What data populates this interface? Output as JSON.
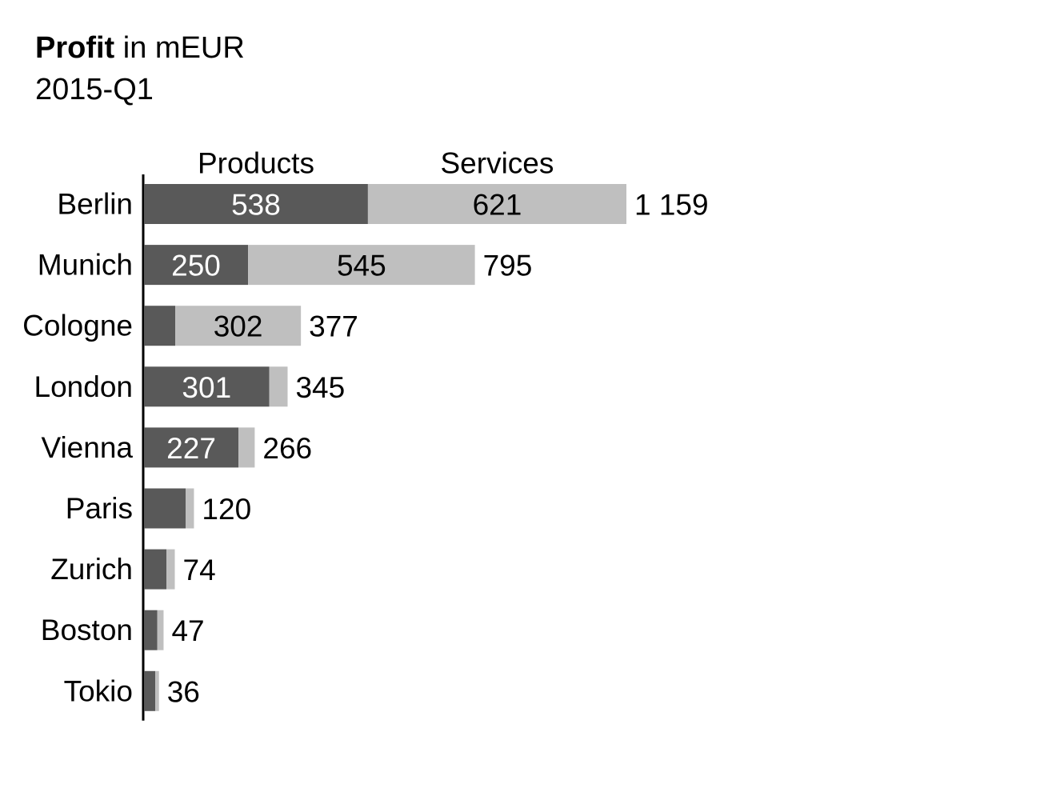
{
  "chart_data": {
    "type": "bar",
    "orientation": "horizontal",
    "stacked": true,
    "title_bold": "Profit",
    "title_rest": " in mEUR",
    "subtitle": "2015-Q1",
    "categories": [
      "Berlin",
      "Munich",
      "Cologne",
      "London",
      "Vienna",
      "Paris",
      "Zurich",
      "Boston",
      "Tokio"
    ],
    "series": [
      {
        "name": "Products",
        "color": "#595959",
        "label_color": "#ffffff",
        "values": [
          538,
          250,
          75,
          301,
          227,
          100,
          54,
          32,
          27
        ],
        "labels": [
          "538",
          "250",
          "",
          "301",
          "227",
          "",
          "",
          "",
          ""
        ]
      },
      {
        "name": "Services",
        "color": "#bfbfbf",
        "label_color": "#000000",
        "values": [
          621,
          545,
          302,
          44,
          39,
          20,
          20,
          15,
          9
        ],
        "labels": [
          "621",
          "545",
          "302",
          "",
          "",
          "",
          "",
          "",
          ""
        ]
      }
    ],
    "totals": [
      "1 159",
      "795",
      "377",
      "345",
      "266",
      "120",
      "74",
      "47",
      "36"
    ],
    "legend_placement": "top, above first bar",
    "grid": false,
    "xlim": [
      0,
      1159
    ]
  }
}
